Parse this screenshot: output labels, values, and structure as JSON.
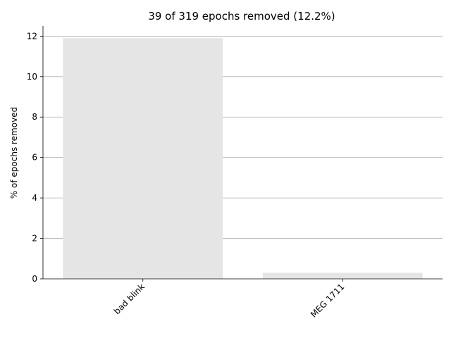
{
  "chart_data": {
    "type": "bar",
    "title": "39 of 319 epochs removed (12.2%)",
    "xlabel": "",
    "ylabel": "% of epochs removed",
    "categories": [
      "bad blink",
      "MEG 1711"
    ],
    "values": [
      11.9,
      0.3
    ],
    "ylim": [
      0,
      12.5
    ],
    "yticks": [
      0,
      2,
      4,
      6,
      8,
      10,
      12
    ],
    "grid": "horizontal",
    "bar_color": "#e5e5e5",
    "grid_color": "#b0b0b0"
  }
}
